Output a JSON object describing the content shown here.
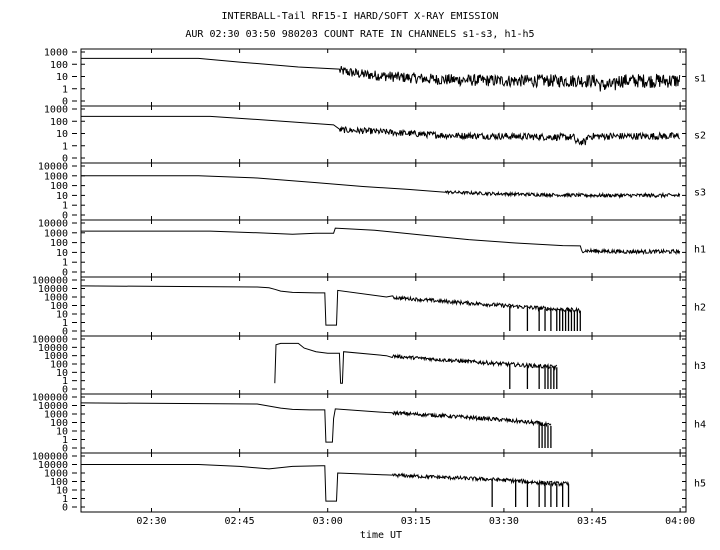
{
  "chart_data": {
    "type": "line",
    "title": "INTERBALL-Tail RF15-I HARD/SOFT X-RAY EMISSION",
    "subtitle": "AUR 02:30 03:50 980203  COUNT RATE IN CHANNELS s1-s3, h1-h5",
    "xlabel": "time UT",
    "x_ticks": [
      "02:30",
      "02:45",
      "03:00",
      "03:15",
      "03:30",
      "03:45",
      "04:00"
    ],
    "x_tick_minutes": [
      30,
      45,
      60,
      75,
      90,
      105,
      120
    ],
    "x_range_minutes": [
      18,
      121
    ],
    "y_scale": "log",
    "panels": [
      {
        "name": "s1",
        "y_ticks": [
          "1000",
          "100",
          "10",
          "1",
          "0"
        ],
        "points": [
          [
            18,
            300
          ],
          [
            38,
            300
          ],
          [
            45,
            150
          ],
          [
            55,
            60
          ],
          [
            62,
            30
          ],
          [
            66,
            15
          ],
          [
            72,
            9
          ],
          [
            78,
            6
          ],
          [
            84,
            5
          ],
          [
            90,
            4.5
          ],
          [
            96,
            4.5
          ],
          [
            100,
            4.5
          ],
          [
            104,
            4.5
          ],
          [
            106,
            4.5
          ],
          [
            106.2,
            2
          ],
          [
            109,
            2
          ],
          [
            109.2,
            4.5
          ],
          [
            120,
            4.5
          ]
        ],
        "noise": [
          [
            62,
            0.4
          ],
          [
            121,
            0.6
          ]
        ]
      },
      {
        "name": "s2",
        "y_ticks": [
          "1000",
          "100",
          "10",
          "1",
          "0"
        ],
        "points": [
          [
            18,
            250
          ],
          [
            40,
            250
          ],
          [
            47,
            150
          ],
          [
            55,
            80
          ],
          [
            61,
            50
          ],
          [
            62,
            20
          ],
          [
            68,
            15
          ],
          [
            74,
            10
          ],
          [
            80,
            7
          ],
          [
            90,
            6
          ],
          [
            100,
            5
          ],
          [
            102,
            5
          ],
          [
            102.2,
            2
          ],
          [
            104,
            2
          ],
          [
            104.2,
            6
          ],
          [
            120,
            6
          ]
        ],
        "noise": [
          [
            62,
            0.25
          ],
          [
            121,
            0.3
          ]
        ]
      },
      {
        "name": "s3",
        "y_ticks": [
          "10000",
          "1000",
          "100",
          "10",
          "1",
          "0"
        ],
        "points": [
          [
            18,
            1000
          ],
          [
            38,
            1000
          ],
          [
            48,
            600
          ],
          [
            58,
            200
          ],
          [
            66,
            80
          ],
          [
            74,
            40
          ],
          [
            80,
            22
          ],
          [
            88,
            15
          ],
          [
            96,
            12
          ],
          [
            104,
            10
          ],
          [
            120,
            10
          ]
        ],
        "noise": [
          [
            80,
            0.15
          ],
          [
            121,
            0.2
          ]
        ]
      },
      {
        "name": "h1",
        "y_ticks": [
          "10000",
          "1000",
          "100",
          "10",
          "1",
          "0"
        ],
        "points": [
          [
            18,
            1500
          ],
          [
            40,
            1500
          ],
          [
            48,
            1000
          ],
          [
            54,
            700
          ],
          [
            58,
            900
          ],
          [
            61,
            900
          ],
          [
            61.3,
            3000
          ],
          [
            68,
            1800
          ],
          [
            76,
            600
          ],
          [
            84,
            200
          ],
          [
            92,
            90
          ],
          [
            100,
            50
          ],
          [
            103,
            35
          ],
          [
            103.2,
            15
          ],
          [
            110,
            12
          ],
          [
            120,
            12
          ]
        ],
        "noise": [
          [
            103,
            0.2
          ],
          [
            121,
            0.2
          ]
        ]
      },
      {
        "name": "h2",
        "y_ticks": [
          "100000",
          "10000",
          "1000",
          "100",
          "10",
          "1",
          "0"
        ],
        "points": [
          [
            18,
            20000
          ],
          [
            48,
            15000
          ],
          [
            50,
            12000
          ],
          [
            51,
            8000
          ],
          [
            52,
            5000
          ],
          [
            54,
            3500
          ],
          [
            58,
            3000
          ],
          [
            59.5,
            3000
          ],
          [
            59.7,
            0.5
          ],
          [
            61.5,
            0.5
          ],
          [
            61.7,
            6000
          ],
          [
            70,
            1000
          ],
          [
            80,
            300
          ],
          [
            90,
            100
          ],
          [
            98,
            40
          ],
          [
            103,
            25
          ]
        ],
        "noise": [
          [
            71,
            0.2
          ],
          [
            103,
            0.25
          ]
        ],
        "spikes_minutes": [
          91,
          94,
          96,
          97,
          98,
          99,
          99.5,
          100,
          100.5,
          101,
          101.5,
          102,
          102.5,
          103
        ]
      },
      {
        "name": "h3",
        "y_ticks": [
          "100000",
          "10000",
          "1000",
          "100",
          "10",
          "1",
          "0"
        ],
        "points": [
          [
            51,
            0.5
          ],
          [
            51.2,
            20000
          ],
          [
            52,
            30000
          ],
          [
            55,
            30000
          ],
          [
            56,
            8000
          ],
          [
            58,
            3000
          ],
          [
            60,
            2000
          ],
          [
            62,
            2000
          ],
          [
            62.2,
            0.5
          ],
          [
            62.5,
            0.5
          ],
          [
            62.7,
            3000
          ],
          [
            70,
            1000
          ],
          [
            80,
            300
          ],
          [
            90,
            100
          ],
          [
            97,
            50
          ],
          [
            99,
            40
          ]
        ],
        "noise": [
          [
            71,
            0.2
          ],
          [
            99,
            0.25
          ]
        ],
        "spikes_minutes": [
          91,
          94,
          96,
          97,
          97.5,
          98,
          98.5,
          99
        ]
      },
      {
        "name": "h4",
        "y_ticks": [
          "100000",
          "10000",
          "1000",
          "100",
          "10",
          "1",
          "0"
        ],
        "points": [
          [
            18,
            20000
          ],
          [
            48,
            15000
          ],
          [
            52,
            5000
          ],
          [
            54,
            3500
          ],
          [
            57,
            3000
          ],
          [
            59.5,
            3000
          ],
          [
            59.7,
            0.5
          ],
          [
            60.8,
            0.5
          ],
          [
            61,
            300
          ],
          [
            61.3,
            4000
          ],
          [
            70,
            1500
          ],
          [
            80,
            600
          ],
          [
            90,
            200
          ],
          [
            96,
            80
          ],
          [
            98,
            40
          ]
        ],
        "noise": [
          [
            71,
            0.2
          ],
          [
            98,
            0.25
          ]
        ],
        "spikes_minutes": [
          96,
          96.5,
          97,
          97.5,
          98
        ]
      },
      {
        "name": "h5",
        "y_ticks": [
          "100000",
          "10000",
          "1000",
          "100",
          "10",
          "1",
          "0"
        ],
        "points": [
          [
            18,
            10000
          ],
          [
            38,
            10000
          ],
          [
            45,
            6000
          ],
          [
            50,
            3000
          ],
          [
            54,
            6000
          ],
          [
            59,
            7000
          ],
          [
            59.5,
            7000
          ],
          [
            59.7,
            0.5
          ],
          [
            61.5,
            0.5
          ],
          [
            61.7,
            1000
          ],
          [
            70,
            600
          ],
          [
            80,
            300
          ],
          [
            90,
            150
          ],
          [
            98,
            60
          ],
          [
            101,
            50
          ]
        ],
        "noise": [
          [
            71,
            0.2
          ],
          [
            101,
            0.25
          ]
        ],
        "spikes_minutes": [
          88,
          92,
          94,
          96,
          97,
          98,
          99,
          100,
          101
        ]
      }
    ]
  }
}
